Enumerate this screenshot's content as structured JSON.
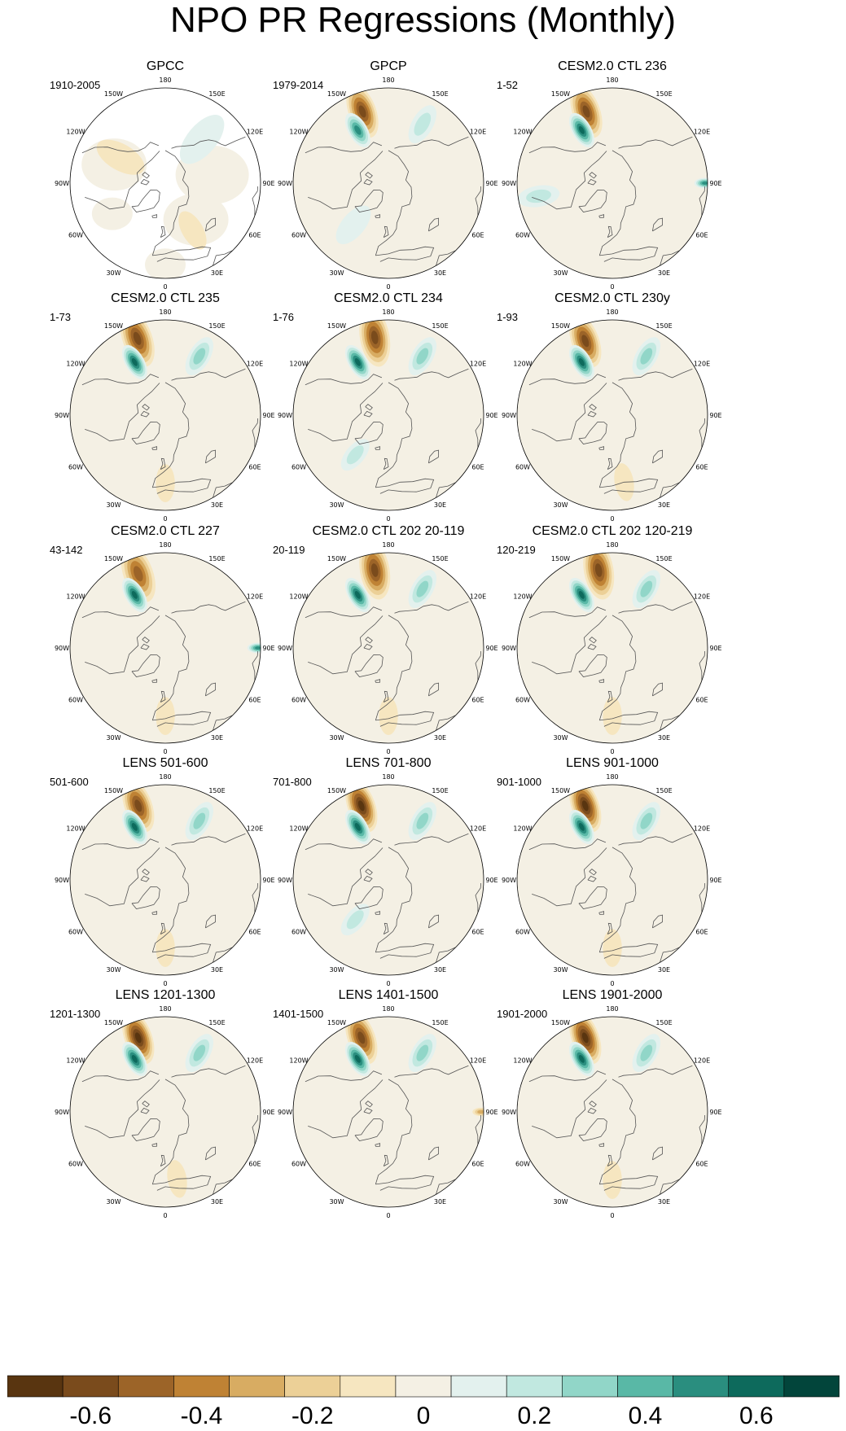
{
  "title": "NPO PR Regressions (Monthly)",
  "chart_data": {
    "type": "heatmap",
    "title": "NPO PR Regressions (Monthly)",
    "projection": "polar stereographic (Northern Hemisphere)",
    "longitude_labels": [
      "180",
      "150E",
      "120E",
      "90E",
      "60E",
      "30E",
      "0",
      "30W",
      "60W",
      "90W",
      "120W",
      "150W"
    ],
    "colorbar": {
      "levels": [
        -0.7,
        -0.6,
        -0.5,
        -0.4,
        -0.3,
        -0.2,
        -0.1,
        0.0,
        0.1,
        0.2,
        0.3,
        0.4,
        0.5,
        0.6,
        0.7
      ],
      "tick_labels": [
        "-0.6",
        "-0.4",
        "-0.2",
        "0",
        "0.2",
        "0.4",
        "0.6"
      ],
      "tick_values": [
        -0.6,
        -0.4,
        -0.2,
        0,
        0.2,
        0.4,
        0.6
      ],
      "colors": [
        "#593510",
        "#7a4b1c",
        "#9c6428",
        "#bf8234",
        "#d8ac62",
        "#ecd097",
        "#f6e6c0",
        "#f4f0e4",
        "#e3f1ee",
        "#c1e8e0",
        "#91d6c8",
        "#59b8a6",
        "#2a8e7f",
        "#0d6a5c",
        "#02453b"
      ]
    },
    "panels": [
      {
        "title": "GPCC",
        "years": "1910-2005",
        "features": [
          {
            "lon": 140,
            "lat": 48,
            "value": 0.05,
            "extent": 28
          },
          {
            "lon": -120,
            "lat": 52,
            "value": -0.1,
            "extent": 25
          },
          {
            "lon": 30,
            "lat": 50,
            "value": -0.1,
            "extent": 20
          }
        ],
        "missing_ocean": true
      },
      {
        "title": "GPCP",
        "years": "1979-2014",
        "features": [
          {
            "lon": -160,
            "lat": 34,
            "value": -0.55,
            "extent": 26
          },
          {
            "lon": -150,
            "lat": 45,
            "value": 0.45,
            "extent": 18
          },
          {
            "lon": 150,
            "lat": 40,
            "value": 0.2,
            "extent": 20
          },
          {
            "lon": -40,
            "lat": 50,
            "value": 0.15,
            "extent": 22
          }
        ]
      },
      {
        "title": "CESM2.0 CTL 236",
        "years": "1-52",
        "features": [
          {
            "lon": -160,
            "lat": 34,
            "value": -0.55,
            "extent": 26
          },
          {
            "lon": -150,
            "lat": 45,
            "value": 0.55,
            "extent": 18
          },
          {
            "lon": 90,
            "lat": 22,
            "value": 0.5,
            "extent": 10
          },
          {
            "lon": -80,
            "lat": 35,
            "value": 0.2,
            "extent": 20
          }
        ]
      },
      {
        "title": "CESM2.0 CTL 235",
        "years": "1-73",
        "features": [
          {
            "lon": -160,
            "lat": 30,
            "value": -0.6,
            "extent": 28
          },
          {
            "lon": -150,
            "lat": 45,
            "value": 0.6,
            "extent": 18
          },
          {
            "lon": 150,
            "lat": 40,
            "value": 0.25,
            "extent": 20
          },
          {
            "lon": 0,
            "lat": 40,
            "value": -0.15,
            "extent": 18
          }
        ]
      },
      {
        "title": "CESM2.0 CTL 234",
        "years": "1-76",
        "features": [
          {
            "lon": -170,
            "lat": 32,
            "value": -0.55,
            "extent": 28
          },
          {
            "lon": -150,
            "lat": 45,
            "value": 0.55,
            "extent": 18
          },
          {
            "lon": 150,
            "lat": 40,
            "value": 0.3,
            "extent": 20
          },
          {
            "lon": -40,
            "lat": 52,
            "value": 0.2,
            "extent": 18
          }
        ]
      },
      {
        "title": "CESM2.0 CTL 230y",
        "years": "1-93",
        "features": [
          {
            "lon": -160,
            "lat": 32,
            "value": -0.6,
            "extent": 26
          },
          {
            "lon": -150,
            "lat": 45,
            "value": 0.6,
            "extent": 18
          },
          {
            "lon": 150,
            "lat": 40,
            "value": 0.3,
            "extent": 20
          },
          {
            "lon": 10,
            "lat": 40,
            "value": -0.15,
            "extent": 18
          }
        ]
      },
      {
        "title": "CESM2.0 CTL 227",
        "years": "43-142",
        "features": [
          {
            "lon": -160,
            "lat": 32,
            "value": -0.5,
            "extent": 28
          },
          {
            "lon": -150,
            "lat": 45,
            "value": 0.6,
            "extent": 18
          },
          {
            "lon": 90,
            "lat": 22,
            "value": 0.45,
            "extent": 10
          },
          {
            "lon": 0,
            "lat": 40,
            "value": -0.15,
            "extent": 18
          }
        ]
      },
      {
        "title": "CESM2.0 CTL 202 20-119",
        "years": "20-119",
        "features": [
          {
            "lon": -170,
            "lat": 32,
            "value": -0.55,
            "extent": 28
          },
          {
            "lon": -150,
            "lat": 45,
            "value": 0.6,
            "extent": 18
          },
          {
            "lon": 150,
            "lat": 40,
            "value": 0.3,
            "extent": 20
          },
          {
            "lon": 0,
            "lat": 40,
            "value": -0.15,
            "extent": 18
          }
        ]
      },
      {
        "title": "CESM2.0 CTL 202 120-219",
        "years": "120-219",
        "features": [
          {
            "lon": -170,
            "lat": 32,
            "value": -0.6,
            "extent": 28
          },
          {
            "lon": -150,
            "lat": 45,
            "value": 0.6,
            "extent": 18
          },
          {
            "lon": 150,
            "lat": 40,
            "value": 0.3,
            "extent": 20
          },
          {
            "lon": 0,
            "lat": 40,
            "value": -0.15,
            "extent": 18
          }
        ]
      },
      {
        "title": "LENS 501-600",
        "years": "501-600",
        "features": [
          {
            "lon": -160,
            "lat": 32,
            "value": -0.55,
            "extent": 26
          },
          {
            "lon": -150,
            "lat": 45,
            "value": 0.6,
            "extent": 18
          },
          {
            "lon": 150,
            "lat": 40,
            "value": 0.25,
            "extent": 20
          },
          {
            "lon": 0,
            "lat": 40,
            "value": -0.1,
            "extent": 18
          }
        ]
      },
      {
        "title": "LENS 701-800",
        "years": "701-800",
        "features": [
          {
            "lon": -160,
            "lat": 32,
            "value": -0.65,
            "extent": 26
          },
          {
            "lon": -150,
            "lat": 45,
            "value": 0.6,
            "extent": 18
          },
          {
            "lon": 150,
            "lat": 40,
            "value": 0.3,
            "extent": 20
          },
          {
            "lon": -40,
            "lat": 52,
            "value": 0.2,
            "extent": 18
          }
        ]
      },
      {
        "title": "LENS 901-1000",
        "years": "901-1000",
        "features": [
          {
            "lon": -160,
            "lat": 32,
            "value": -0.65,
            "extent": 26
          },
          {
            "lon": -150,
            "lat": 45,
            "value": 0.6,
            "extent": 18
          },
          {
            "lon": 150,
            "lat": 40,
            "value": 0.3,
            "extent": 20
          },
          {
            "lon": 0,
            "lat": 40,
            "value": -0.1,
            "extent": 18
          }
        ]
      },
      {
        "title": "LENS 1201-1300",
        "years": "1201-1300",
        "features": [
          {
            "lon": -160,
            "lat": 32,
            "value": -0.65,
            "extent": 26
          },
          {
            "lon": -150,
            "lat": 45,
            "value": 0.6,
            "extent": 18
          },
          {
            "lon": 150,
            "lat": 40,
            "value": 0.3,
            "extent": 20
          },
          {
            "lon": 10,
            "lat": 40,
            "value": -0.15,
            "extent": 18
          }
        ]
      },
      {
        "title": "LENS 1401-1500",
        "years": "1401-1500",
        "features": [
          {
            "lon": -160,
            "lat": 32,
            "value": -0.6,
            "extent": 26
          },
          {
            "lon": -150,
            "lat": 45,
            "value": 0.6,
            "extent": 18
          },
          {
            "lon": 150,
            "lat": 40,
            "value": 0.3,
            "extent": 20
          },
          {
            "lon": 90,
            "lat": 22,
            "value": -0.3,
            "extent": 8
          }
        ]
      },
      {
        "title": "LENS 1901-2000",
        "years": "1901-2000",
        "features": [
          {
            "lon": -160,
            "lat": 32,
            "value": -0.65,
            "extent": 26
          },
          {
            "lon": -150,
            "lat": 45,
            "value": 0.6,
            "extent": 18
          },
          {
            "lon": 150,
            "lat": 40,
            "value": 0.3,
            "extent": 20
          },
          {
            "lon": 0,
            "lat": 40,
            "value": -0.1,
            "extent": 18
          }
        ]
      }
    ]
  }
}
